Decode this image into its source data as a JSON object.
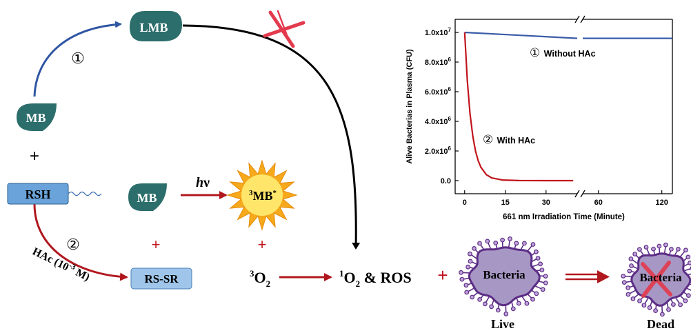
{
  "molecules": {
    "lmb": "LMB",
    "mb_top": "MB",
    "mb_mid": "MB",
    "plus_top": "+",
    "rsh": "RSH",
    "rssr": "RS-SR",
    "plus_mb": "+",
    "plus_3mb": "+",
    "triplet_mb": {
      "sup_left": "3",
      "base": "MB",
      "sup_right": "*"
    },
    "hv": {
      "h": "h",
      "nu": "ν"
    },
    "o2_triplet": {
      "sup": "3",
      "base": "O",
      "sub": "2"
    },
    "singlet_o2_ros": {
      "sup": "1",
      "base": "O",
      "sub": "2",
      "rest": " & ROS"
    },
    "plus_bacteria": "+"
  },
  "steps": {
    "step1": "①",
    "step2": "②",
    "hac": {
      "pre": "HAc (10",
      "sup": "-3",
      "post": " M)"
    }
  },
  "bacteria": {
    "live_label": "Bacteria",
    "dead_label": "Bacteria",
    "live_caption": "Live",
    "dead_caption": "Dead"
  },
  "colors": {
    "teal": "#2c6e6b",
    "blue_arrow": "#2f56a3",
    "red_arrow": "#b0181e",
    "cross": "#e33a4d",
    "box_fill": "#6aa3d9",
    "box_light": "#9fc6ea",
    "star_outer": "#f6a91a",
    "star_inner": "#ffe66b",
    "bacteria_fill": "#a797c4",
    "bacteria_edge": "#5c2d86",
    "curve_blue": "#3a5ca8",
    "curve_red": "#c0141c"
  },
  "chart_data": {
    "type": "line",
    "title": "",
    "xlabel": "661 nm Irradiation Time (Minute)",
    "ylabel": "Alive Bacterias in Plasma (CFU)",
    "ylim": [
      0,
      10000000
    ],
    "y_tick_labels": [
      {
        "value": 0,
        "mant": "0.0",
        "exp": ""
      },
      {
        "value": 2000000,
        "mant": "2.0x10",
        "exp": "6"
      },
      {
        "value": 4000000,
        "mant": "4.0x10",
        "exp": "6"
      },
      {
        "value": 6000000,
        "mant": "6.0x10",
        "exp": "6"
      },
      {
        "value": 8000000,
        "mant": "8.0x10",
        "exp": "6"
      },
      {
        "value": 10000000,
        "mant": "1.0x10",
        "exp": "7"
      }
    ],
    "x_segments": [
      {
        "range": [
          -3.5,
          42.5
        ],
        "ticks": [
          0,
          15,
          30
        ]
      },
      {
        "range": [
          42.5,
          130
        ],
        "ticks": [
          60,
          120
        ]
      }
    ],
    "x_break": "//",
    "series": [
      {
        "name": "Without HAc",
        "marker": "①",
        "color": "#3a5ca8",
        "points": [
          [
            0,
            10000000
          ],
          [
            40,
            9800000
          ],
          [
            130,
            9600000
          ]
        ]
      },
      {
        "name": "With HAc",
        "marker": "②",
        "color": "#c0141c",
        "points": [
          [
            0,
            10000000
          ],
          [
            1,
            6700000
          ],
          [
            2,
            4500000
          ],
          [
            3,
            3000000
          ],
          [
            4,
            2000000
          ],
          [
            5,
            1350000
          ],
          [
            6,
            900000
          ],
          [
            8,
            400000
          ],
          [
            10,
            180000
          ],
          [
            14,
            40000
          ],
          [
            20,
            5000
          ],
          [
            30,
            0
          ],
          [
            40,
            0
          ]
        ]
      }
    ]
  }
}
